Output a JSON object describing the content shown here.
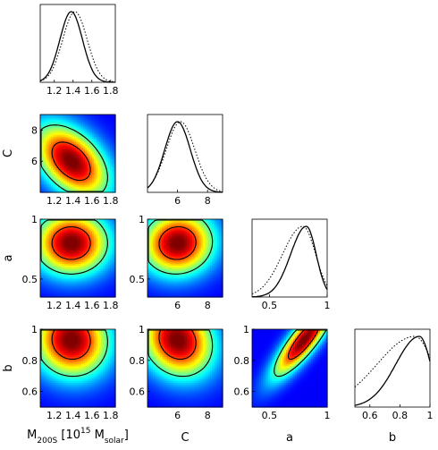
{
  "chart_data": {
    "type": "corner",
    "parameters": [
      {
        "key": "M",
        "ticks": [
          1.2,
          1.4,
          1.6,
          1.8
        ],
        "tick_labels": [
          "1.2",
          "1.4",
          "1.6",
          "1.8"
        ],
        "range": [
          1.05,
          1.85
        ],
        "peak": 1.38,
        "width": 0.15
      },
      {
        "key": "C",
        "ticks": [
          6,
          8
        ],
        "tick_labels": [
          "6",
          "8"
        ],
        "range": [
          4.0,
          9.0
        ],
        "peak": 6.0,
        "width": 0.9
      },
      {
        "key": "a",
        "ticks": [
          0.5,
          1
        ],
        "tick_labels": [
          "0.5",
          "1"
        ],
        "range": [
          0.35,
          1.0
        ],
        "peak": 0.8,
        "width": 0.1
      },
      {
        "key": "b",
        "ticks": [
          0.6,
          0.8,
          1
        ],
        "tick_labels": [
          "0.6",
          "0.8",
          "1"
        ],
        "range": [
          0.5,
          1.0
        ],
        "peak": 0.93,
        "width": 0.09
      }
    ],
    "x_axis_labels": {
      "M": {
        "main": "M",
        "sub": "200S",
        "mid": " [10",
        "sup": "15",
        "mid2": " M",
        "sub2": "solar",
        "end": "]"
      },
      "C": "C",
      "a": "a",
      "b": "b"
    },
    "y_axis_labels": {
      "C": "C",
      "a": "a",
      "b": "b"
    },
    "y_ticks": {
      "C": [
        "6",
        "8"
      ],
      "a": [
        "0.5",
        "1"
      ],
      "b": [
        "0.6",
        "0.8",
        "1"
      ]
    },
    "marginals": [
      {
        "param": "M",
        "solid_peak": 1.38,
        "solid_width": 0.12,
        "dotted_peak": 1.42,
        "dotted_width": 0.13
      },
      {
        "param": "C",
        "solid_peak": 6.0,
        "solid_width": 0.85,
        "dotted_peak": 6.2,
        "dotted_width": 0.95
      },
      {
        "param": "a",
        "solid_peak": 0.82,
        "solid_width": 0.085,
        "dotted_peak": 0.79,
        "dotted_width": 0.11
      },
      {
        "param": "b",
        "solid_peak": 0.93,
        "solid_width": 0.075,
        "dotted_peak": 0.9,
        "dotted_width": 0.12
      }
    ],
    "joints": [
      {
        "x": "M",
        "y": "C",
        "corr": -0.45
      },
      {
        "x": "M",
        "y": "a",
        "corr": 0.0
      },
      {
        "x": "C",
        "y": "a",
        "corr": 0.05
      },
      {
        "x": "M",
        "y": "b",
        "corr": -0.05
      },
      {
        "x": "C",
        "y": "b",
        "corr": -0.15
      },
      {
        "x": "a",
        "y": "b",
        "corr": 0.85
      }
    ],
    "colormap": "jet",
    "contour_color": "#000000"
  }
}
